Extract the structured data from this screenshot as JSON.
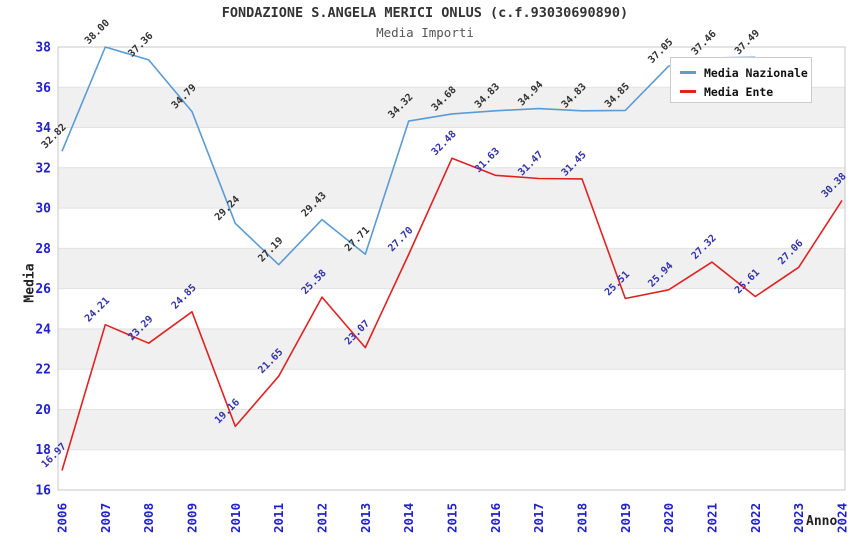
{
  "header": {
    "title": "FONDAZIONE S.ANGELA MERICI ONLUS (c.f.93030690890)",
    "subtitle": "Media Importi"
  },
  "axes": {
    "y_title": "Media",
    "x_title": "Anno"
  },
  "legend": {
    "items": [
      {
        "label": "Media Nazionale",
        "color": "#5b9bd5"
      },
      {
        "label": "Media Ente",
        "color": "#e02222"
      }
    ]
  },
  "colors": {
    "axis_tick": "#2222cc",
    "grid_band": "#f0f0f0",
    "gridline": "#e2e2e2",
    "plot_border": "#c8c8c8",
    "title": "#333333",
    "subtitle": "#555555",
    "label_nazionale": "#333333",
    "label_ente": "#3333aa"
  },
  "chart_data": {
    "type": "line",
    "title": "FONDAZIONE S.ANGELA MERICI ONLUS (c.f.93030690890)",
    "subtitle": "Media Importi",
    "xlabel": "Anno",
    "ylabel": "Media",
    "x": [
      2006,
      2007,
      2008,
      2009,
      2010,
      2011,
      2012,
      2013,
      2014,
      2015,
      2016,
      2017,
      2018,
      2019,
      2020,
      2021,
      2022,
      2023,
      2024
    ],
    "series": [
      {
        "name": "Media Nazionale",
        "color": "#5b9bd5",
        "label_color": "#333333",
        "values": [
          32.82,
          38.0,
          37.36,
          34.79,
          29.24,
          27.19,
          29.43,
          27.71,
          34.32,
          34.68,
          34.83,
          34.94,
          34.83,
          34.85,
          37.05,
          37.46,
          37.49,
          null,
          null
        ]
      },
      {
        "name": "Media Ente",
        "color": "#e02222",
        "label_color": "#3333aa",
        "values": [
          16.97,
          24.21,
          23.29,
          24.85,
          19.16,
          21.65,
          25.58,
          23.07,
          27.7,
          32.48,
          31.63,
          31.47,
          31.45,
          25.51,
          25.94,
          27.32,
          25.61,
          27.06,
          30.38
        ]
      }
    ],
    "ylim": [
      16,
      38
    ],
    "yticks": [
      16,
      18,
      20,
      22,
      24,
      26,
      28,
      30,
      32,
      34,
      36,
      38
    ],
    "grid": "horizontal gridlines with alternating gray bands",
    "legend_position": "top-right",
    "point_labels": "shown, rotated 45 degrees, two decimals"
  }
}
